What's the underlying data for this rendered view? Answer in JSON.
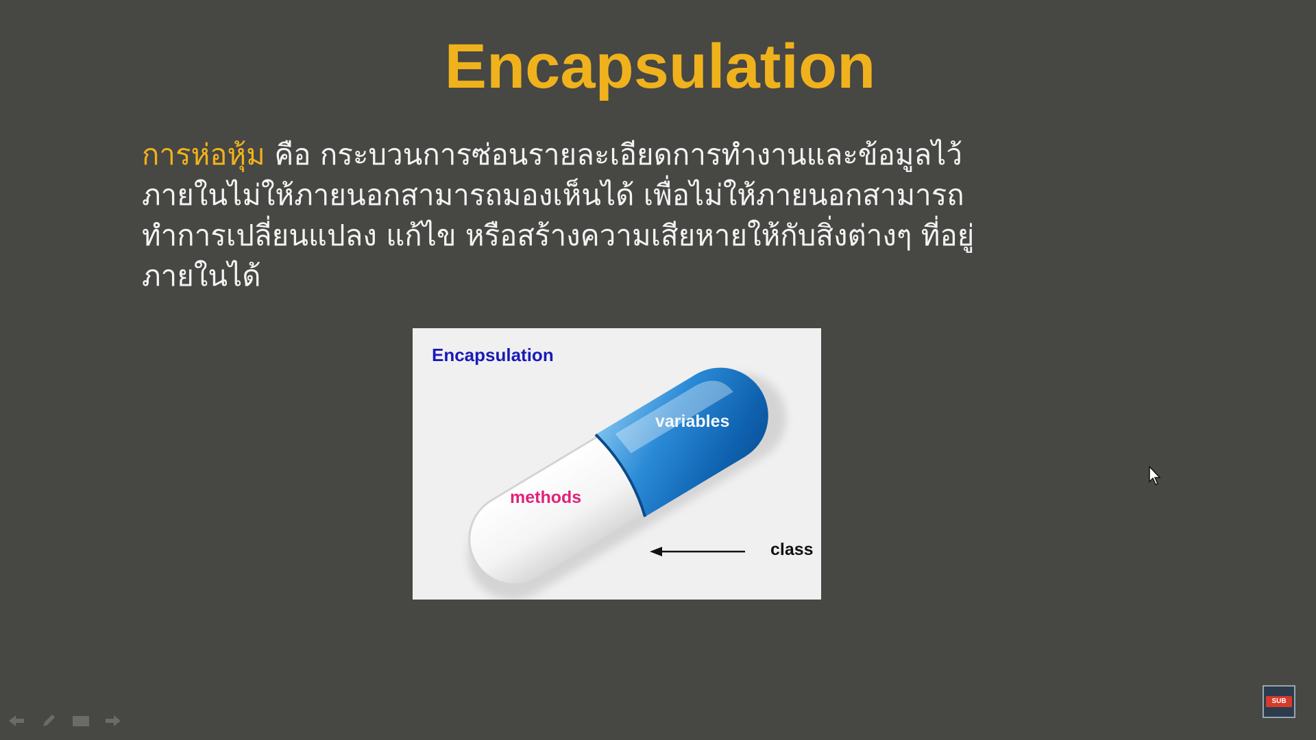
{
  "slide": {
    "title": "Encapsulation",
    "body": {
      "term": "การห่อหุ้ม",
      "line1_rest": " คือ กระบวนการซ่อนรายละเอียดการทำงานและข้อมูลไว้",
      "line2": "ภายในไม่ให้ภายนอกสามารถมองเห็นได้ เพื่อไม่ให้ภายนอกสามารถ",
      "line3": "ทำการเปลี่ยนแปลง แก้ไข หรือสร้างความเสียหายให้กับสิ่งต่างๆ ที่อยู่",
      "line4": "ภายในได้"
    },
    "figure": {
      "title": "Encapsulation",
      "variables_label": "variables",
      "methods_label": "methods",
      "class_label": "class"
    }
  },
  "nav": {
    "icons": [
      "arrow-left-icon",
      "pen-icon",
      "slides-icon",
      "arrow-right-icon"
    ]
  },
  "badge": {
    "label": "SUB"
  },
  "colors": {
    "background": "#474744",
    "accent": "#f0b21c",
    "body_text": "#f3f3f3",
    "capsule_blue": "#1a78c8",
    "methods_pink": "#e0227a",
    "figure_title_blue": "#1a1ab8"
  }
}
